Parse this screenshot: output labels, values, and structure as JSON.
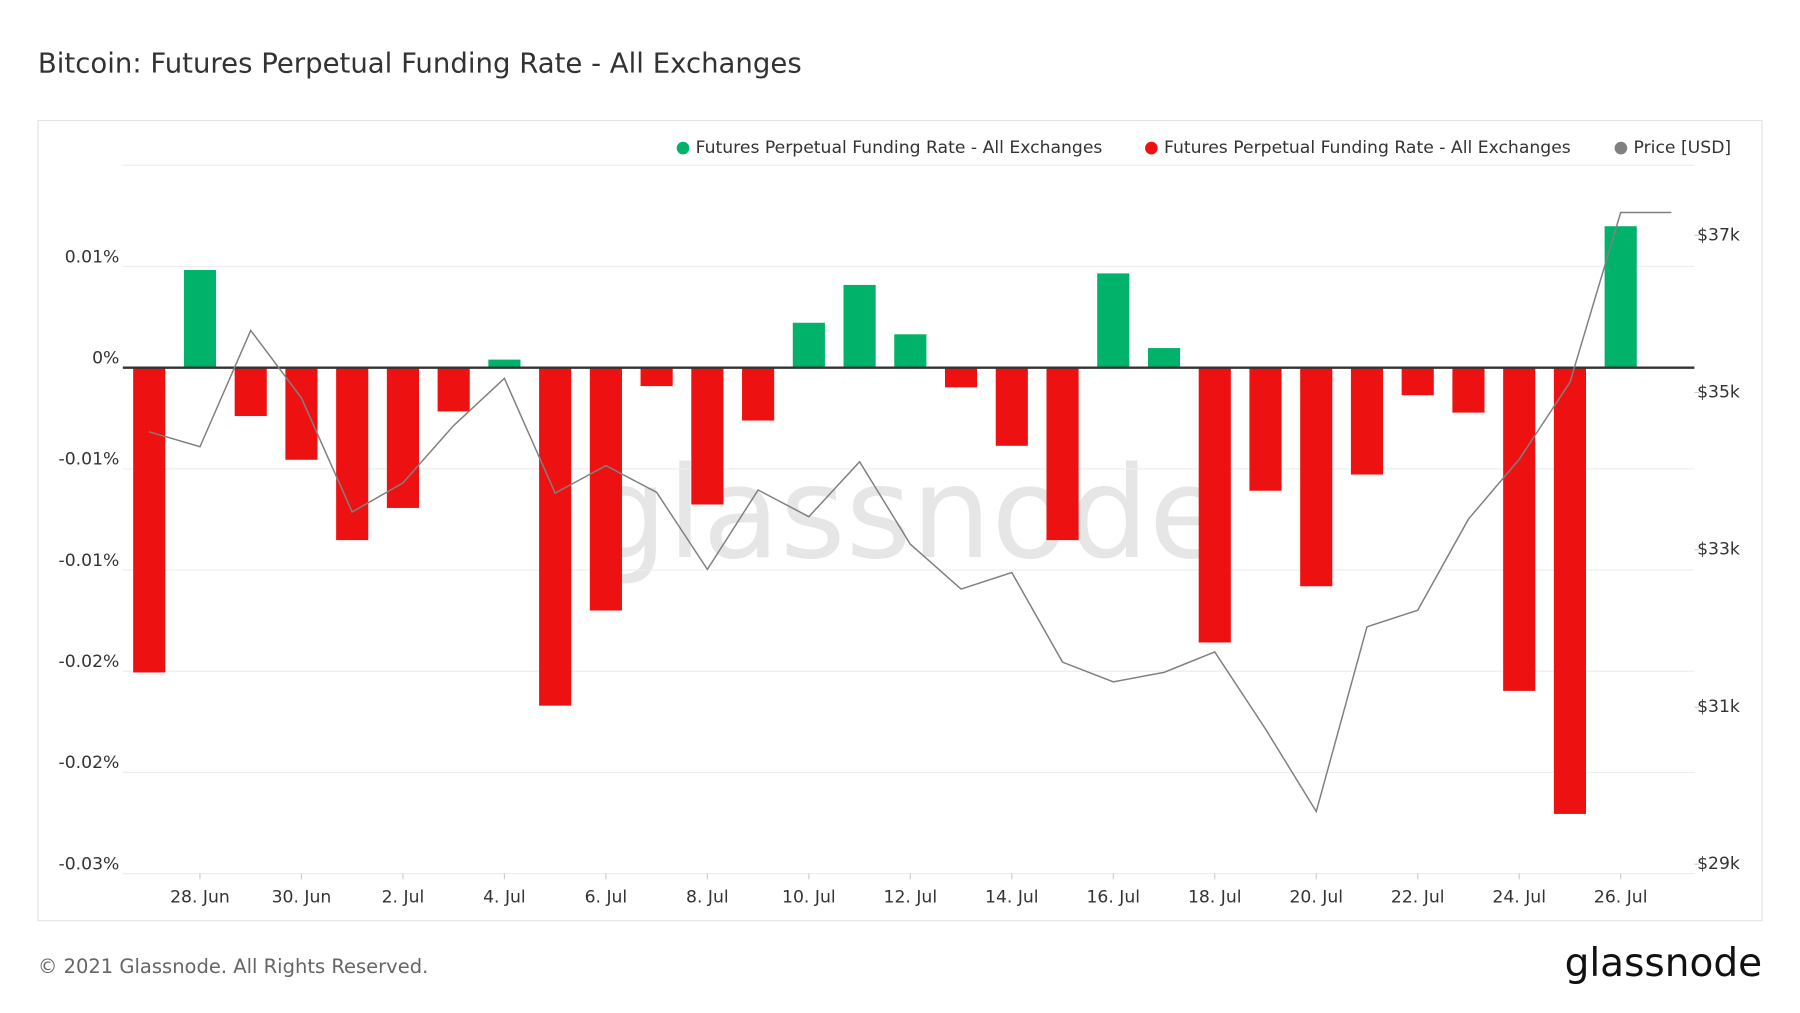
{
  "chart_data": {
    "type": "bar",
    "title": "Bitcoin: Futures Perpetual Funding Rate - All Exchanges",
    "watermark": "glassnode",
    "footer": "© 2021 Glassnode. All Rights Reserved.",
    "logo": "glassnode",
    "categories": [
      null,
      "28. Jun",
      null,
      "30. Jun",
      null,
      "2. Jul",
      null,
      "4. Jul",
      null,
      "6. Jul",
      null,
      "8. Jul",
      null,
      "10. Jul",
      null,
      "12. Jul",
      null,
      "14. Jul",
      null,
      "16. Jul",
      null,
      "18. Jul",
      null,
      "20. Jul",
      null,
      "22. Jul",
      null,
      "24. Jul",
      null,
      "26. Jul",
      null
    ],
    "ylim": [
      -0.025,
      0.01
    ],
    "yticks": [
      {
        "value": 0.005,
        "label": "0.01%"
      },
      {
        "value": 0,
        "label": "0%"
      },
      {
        "value": -0.005,
        "label": "-0.01%"
      },
      {
        "value": -0.01,
        "label": "-0.01%"
      },
      {
        "value": -0.015,
        "label": "-0.02%"
      },
      {
        "value": -0.02,
        "label": "-0.02%"
      },
      {
        "value": -0.025,
        "label": "-0.03%"
      }
    ],
    "y2lim": [
      28880,
      37890
    ],
    "y2ticks": [
      {
        "value": 29000,
        "label": "$29k"
      },
      {
        "value": 31000,
        "label": "$31k"
      },
      {
        "value": 33000,
        "label": "$33k"
      },
      {
        "value": 35000,
        "label": "$35k"
      },
      {
        "value": 37000,
        "label": "$37k"
      }
    ],
    "grid": true,
    "legend": "top-right",
    "series": [
      {
        "name": "Futures Perpetual Funding Rate - All Exchanges",
        "color": "#00b26a",
        "values": [
          null,
          0.00483,
          null,
          null,
          null,
          null,
          null,
          0.0004,
          null,
          null,
          null,
          null,
          null,
          0.00222,
          0.00409,
          0.00165,
          null,
          null,
          null,
          0.00466,
          0.00097,
          null,
          null,
          null,
          null,
          null,
          null,
          null,
          null,
          0.00699,
          null
        ]
      },
      {
        "name": "Futures Perpetual Funding Rate - All Exchanges",
        "color": "#ee1111",
        "values": [
          -0.01506,
          null,
          -0.00239,
          -0.00455,
          -0.00852,
          -0.00693,
          -0.00216,
          null,
          -0.0167,
          -0.012,
          -0.00091,
          -0.00676,
          -0.00261,
          null,
          null,
          null,
          -0.00097,
          -0.00386,
          -0.00852,
          null,
          null,
          -0.01358,
          -0.00608,
          -0.0108,
          -0.00528,
          -0.00136,
          -0.00222,
          -0.01597,
          -0.02205,
          null,
          null
        ]
      },
      {
        "name": "Price [USD]",
        "color": "#808080",
        "axis": "y2",
        "type": "line",
        "values": [
          34500,
          34310,
          35790,
          34930,
          33480,
          33850,
          34580,
          35180,
          33720,
          34070,
          33730,
          32750,
          33760,
          33420,
          34120,
          33070,
          32500,
          32710,
          31570,
          31320,
          31440,
          31700,
          30720,
          29670,
          32020,
          32230,
          33390,
          34150,
          35130,
          37290,
          37290
        ]
      }
    ]
  }
}
